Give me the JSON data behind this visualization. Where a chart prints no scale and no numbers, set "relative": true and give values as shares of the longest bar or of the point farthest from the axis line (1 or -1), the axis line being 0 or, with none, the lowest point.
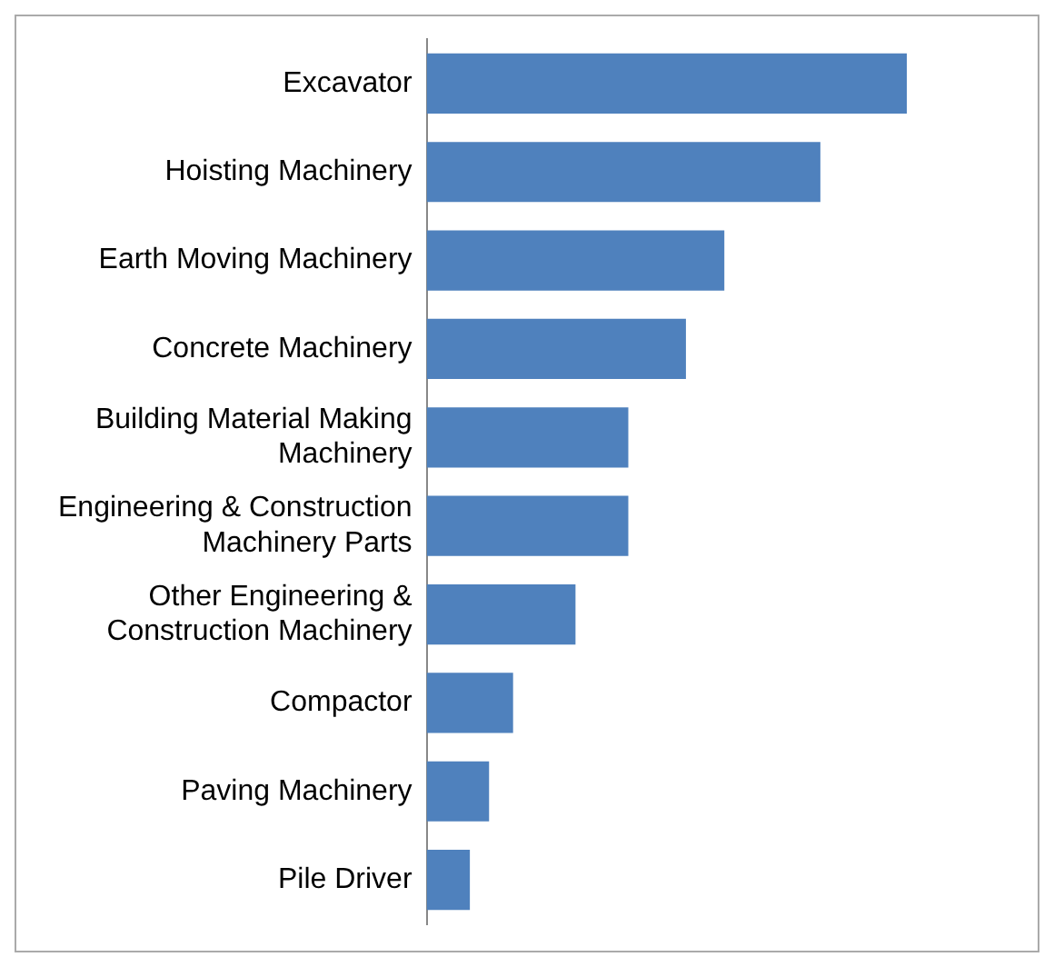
{
  "chart_data": {
    "type": "bar",
    "orientation": "horizontal",
    "relative": true,
    "legend": false,
    "categories": [
      "Excavator",
      "Hoisting Machinery",
      "Earth Moving Machinery",
      "Concrete Machinery",
      "Building Material Making Machinery",
      "Engineering & Construction Machinery Parts",
      "Other Engineering & Construction Machinery",
      "Compactor",
      "Paving Machinery",
      "Pile Driver"
    ],
    "values": [
      1,
      0.82,
      0.62,
      0.54,
      0.42,
      0.42,
      0.31,
      0.18,
      0.13,
      0.09
    ],
    "color": "#4f81bd"
  }
}
